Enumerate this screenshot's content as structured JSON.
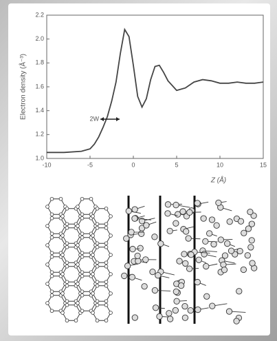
{
  "chart_data": {
    "type": "line",
    "x": [
      -10,
      -8,
      -6,
      -5,
      -4.5,
      -4,
      -3.5,
      -3,
      -2.5,
      -2,
      -1.5,
      -1,
      -0.5,
      0,
      0.5,
      1,
      1.5,
      2,
      2.5,
      3,
      3.5,
      4,
      5,
      6,
      7,
      8,
      9,
      10,
      11,
      12,
      13,
      14,
      15
    ],
    "values": [
      1.05,
      1.05,
      1.06,
      1.08,
      1.12,
      1.18,
      1.26,
      1.35,
      1.48,
      1.64,
      1.88,
      2.08,
      2.02,
      1.78,
      1.52,
      1.43,
      1.5,
      1.66,
      1.77,
      1.78,
      1.72,
      1.65,
      1.57,
      1.59,
      1.64,
      1.66,
      1.65,
      1.63,
      1.63,
      1.64,
      1.63,
      1.63,
      1.64
    ],
    "color": "#444444",
    "xlabel": "Z (Å)",
    "ylabel": "Electron density (Å⁻³)",
    "annotation": "2W",
    "xlim": [
      -10,
      15
    ],
    "ylim": [
      1.0,
      2.2
    ],
    "xticks": [
      -10,
      -5,
      0,
      5,
      10,
      15
    ],
    "yticks": [
      {
        "value": 1,
        "label": "1.0"
      },
      1.2,
      1.4,
      1.6,
      1.8,
      {
        "value": 2,
        "label": "2.0"
      },
      2.2
    ]
  }
}
